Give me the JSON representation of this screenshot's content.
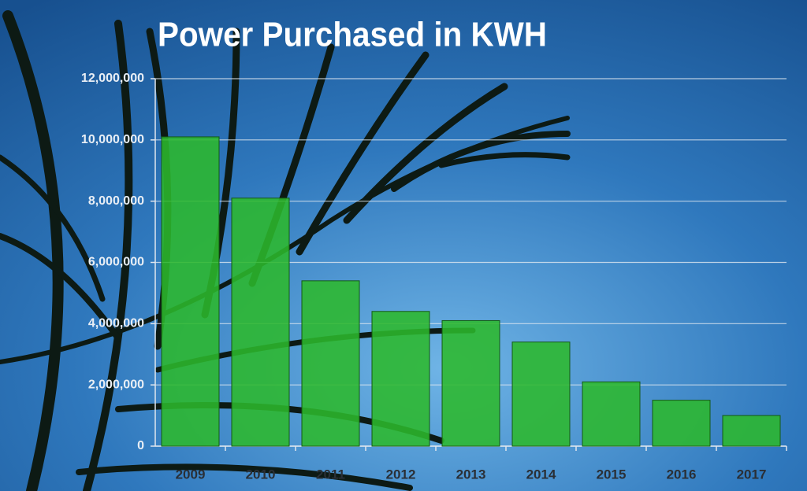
{
  "chart_data": {
    "type": "bar",
    "title": "Power Purchased in KWH",
    "categories": [
      "2009",
      "2010",
      "2011",
      "2012",
      "2013",
      "2014",
      "2015",
      "2016",
      "2017"
    ],
    "values": [
      10100000,
      8100000,
      5400000,
      4400000,
      4100000,
      3400000,
      2100000,
      1500000,
      1000000
    ],
    "color": "#2cb82c",
    "ylim": [
      0,
      12000000
    ],
    "yticks": [
      0,
      {
        "value": 2000000,
        "label": "2,000,000"
      },
      {
        "value": 4000000,
        "label": "4,000,000"
      },
      {
        "value": 6000000,
        "label": "6,000,000"
      },
      {
        "value": 8000000,
        "label": "8,000,000"
      },
      {
        "value": 10000000,
        "label": "10,000,000"
      },
      {
        "value": 12000000,
        "label": "12,000,000"
      }
    ],
    "grid": true
  }
}
